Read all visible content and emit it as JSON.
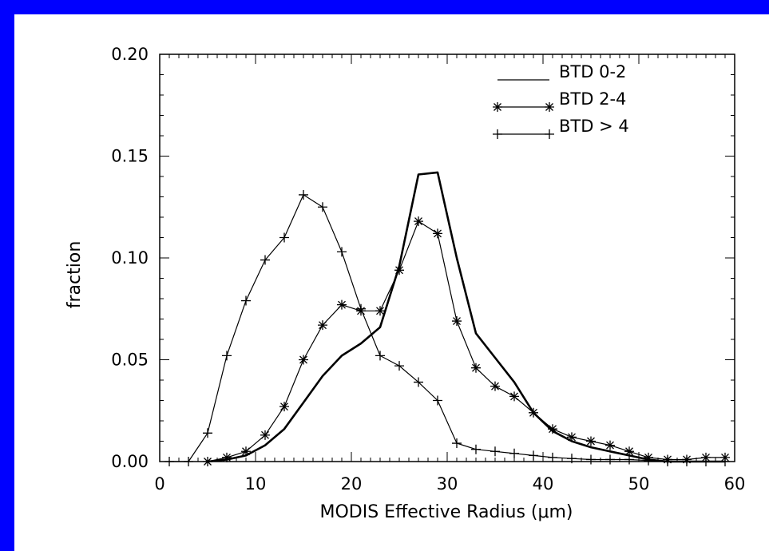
{
  "chart_data": {
    "type": "line",
    "title": "",
    "xlabel": "MODIS Effective Radius (μm)",
    "ylabel": "fraction",
    "xlim": [
      0,
      60
    ],
    "ylim": [
      0,
      0.2
    ],
    "xticks": [
      0,
      10,
      20,
      30,
      40,
      50,
      60
    ],
    "yticks": [
      0.0,
      0.05,
      0.1,
      0.15,
      0.2
    ],
    "xtick_labels": [
      "0",
      "10",
      "20",
      "30",
      "40",
      "50",
      "60"
    ],
    "ytick_labels": [
      "0.00",
      "0.05",
      "0.10",
      "0.15",
      "0.20"
    ],
    "grid": false,
    "legend_position": "top-right",
    "series": [
      {
        "name": "BTD 0-2",
        "marker": "none",
        "line": "thick",
        "x": [
          5,
          7,
          9,
          11,
          13,
          15,
          17,
          19,
          21,
          23,
          25,
          27,
          29,
          31,
          33,
          35,
          37,
          39,
          41,
          43,
          45,
          47,
          49,
          51,
          53,
          55,
          57,
          59
        ],
        "y": [
          0.0,
          0.001,
          0.003,
          0.008,
          0.016,
          0.029,
          0.042,
          0.052,
          0.058,
          0.066,
          0.096,
          0.141,
          0.142,
          0.1,
          0.063,
          0.051,
          0.039,
          0.024,
          0.015,
          0.01,
          0.007,
          0.005,
          0.003,
          0.001,
          0.0,
          0.0,
          0.0,
          0.0
        ]
      },
      {
        "name": "BTD 2-4",
        "marker": "asterisk",
        "line": "thin",
        "x": [
          5,
          7,
          9,
          11,
          13,
          15,
          17,
          19,
          21,
          23,
          25,
          27,
          29,
          31,
          33,
          35,
          37,
          39,
          41,
          43,
          45,
          47,
          49,
          51,
          53,
          55,
          57,
          59
        ],
        "y": [
          0.0,
          0.002,
          0.005,
          0.013,
          0.027,
          0.05,
          0.067,
          0.077,
          0.074,
          0.074,
          0.094,
          0.118,
          0.112,
          0.069,
          0.046,
          0.037,
          0.032,
          0.024,
          0.016,
          0.012,
          0.01,
          0.008,
          0.005,
          0.002,
          0.001,
          0.001,
          0.002,
          0.002
        ]
      },
      {
        "name": "BTD > 4",
        "marker": "plus",
        "line": "thin",
        "x": [
          1,
          3,
          5,
          7,
          9,
          11,
          13,
          15,
          17,
          19,
          21,
          23,
          25,
          27,
          29,
          31,
          33,
          35,
          37,
          39,
          41,
          43,
          45,
          47,
          49,
          51,
          53,
          55,
          57,
          59
        ],
        "y": [
          0.0,
          0.0,
          0.014,
          0.052,
          0.079,
          0.099,
          0.11,
          0.131,
          0.125,
          0.103,
          0.075,
          0.052,
          0.047,
          0.039,
          0.03,
          0.009,
          0.006,
          0.005,
          0.004,
          0.003,
          0.002,
          0.0015,
          0.001,
          0.001,
          0.001,
          0.0005,
          0.0,
          0.0,
          0.0,
          0.0
        ]
      }
    ]
  }
}
